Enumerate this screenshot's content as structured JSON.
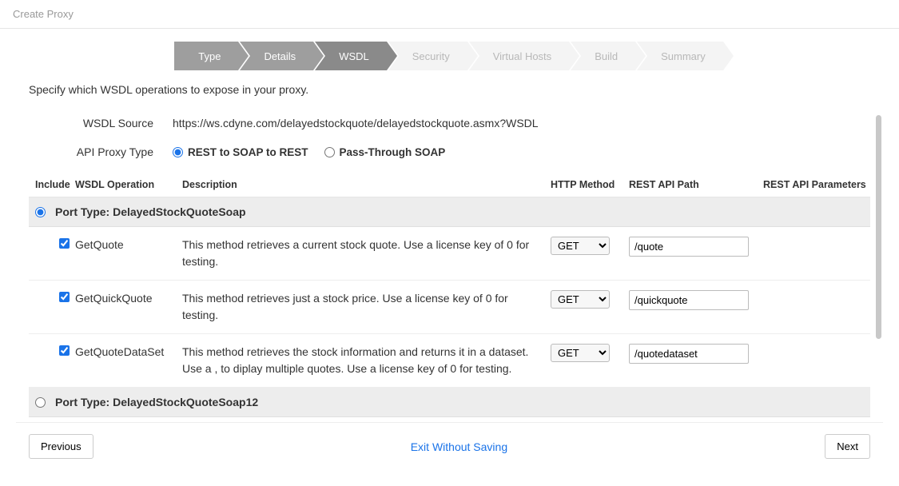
{
  "pageTitle": "Create Proxy",
  "steps": [
    {
      "label": "Type",
      "state": "done"
    },
    {
      "label": "Details",
      "state": "done"
    },
    {
      "label": "WSDL",
      "state": "active"
    },
    {
      "label": "Security",
      "state": "pending"
    },
    {
      "label": "Virtual Hosts",
      "state": "pending"
    },
    {
      "label": "Build",
      "state": "pending"
    },
    {
      "label": "Summary",
      "state": "pending"
    }
  ],
  "instruction": "Specify which WSDL operations to expose in your proxy.",
  "wsdlSource": {
    "label": "WSDL Source",
    "value": "https://ws.cdyne.com/delayedstockquote/delayedstockquote.asmx?WSDL"
  },
  "apiProxyType": {
    "label": "API Proxy Type",
    "options": [
      {
        "label": "REST to SOAP to REST",
        "selected": true
      },
      {
        "label": "Pass-Through SOAP",
        "selected": false
      }
    ]
  },
  "columns": {
    "include": "Include",
    "operation": "WSDL Operation",
    "description": "Description",
    "method": "HTTP Method",
    "path": "REST API Path",
    "params": "REST API Parameters"
  },
  "portTypes": [
    {
      "name": "Port Type: DelayedStockQuoteSoap",
      "selected": true,
      "operations": [
        {
          "checked": true,
          "name": "GetQuote",
          "desc": "This method retrieves a current stock quote. Use a license key of 0 for testing.",
          "method": "GET",
          "path": "/quote"
        },
        {
          "checked": true,
          "name": "GetQuickQuote",
          "desc": "This method retrieves just a stock price. Use a license key of 0 for testing.",
          "method": "GET",
          "path": "/quickquote"
        },
        {
          "checked": true,
          "name": "GetQuoteDataSet",
          "desc": "This method retrieves the stock information and returns it in a dataset. Use a , to diplay multiple quotes. Use a license key of 0 for testing.",
          "method": "GET",
          "path": "/quotedataset"
        }
      ]
    },
    {
      "name": "Port Type: DelayedStockQuoteSoap12",
      "selected": false,
      "operations": []
    }
  ],
  "footer": {
    "previous": "Previous",
    "exit": "Exit Without Saving",
    "next": "Next"
  },
  "colors": {
    "stepDone": "#9e9e9e",
    "stepActive": "#8a8a8a",
    "stepPending": "#f4f4f4",
    "accent": "#1a73e8",
    "portRowBg": "#ededed",
    "border": "#e5e5e5"
  }
}
